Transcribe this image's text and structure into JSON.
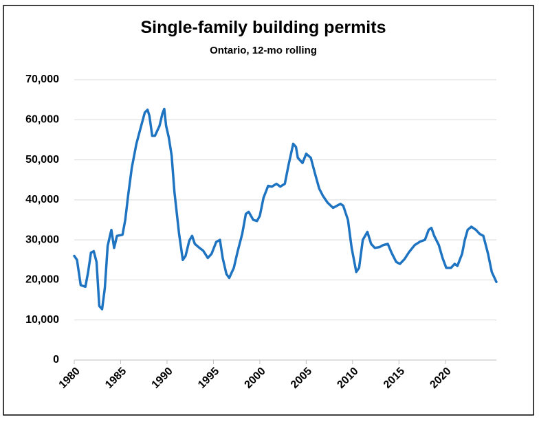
{
  "chart_data": {
    "type": "line",
    "title": "Single-family building permits",
    "subtitle": "Ontario, 12-mo rolling",
    "x": [
      1980.0,
      1980.3,
      1980.7,
      1981.2,
      1981.5,
      1981.8,
      1982.1,
      1982.4,
      1982.5,
      1982.7,
      1983.0,
      1983.3,
      1983.6,
      1983.9,
      1984.0,
      1984.3,
      1984.6,
      1985.2,
      1985.5,
      1985.8,
      1986.2,
      1986.7,
      1987.1,
      1987.6,
      1987.9,
      1988.1,
      1988.4,
      1988.7,
      1989.2,
      1989.5,
      1989.7,
      1989.9,
      1990.2,
      1990.5,
      1990.8,
      1991.3,
      1991.7,
      1992.0,
      1992.4,
      1992.7,
      1993.0,
      1993.5,
      1993.9,
      1994.4,
      1994.8,
      1995.3,
      1995.7,
      1996.0,
      1996.4,
      1996.7,
      1997.2,
      1997.6,
      1998.1,
      1998.5,
      1998.8,
      1999.3,
      1999.7,
      2000.0,
      2000.4,
      2000.9,
      2001.3,
      2001.8,
      2002.2,
      2002.7,
      2003.1,
      2003.6,
      2003.9,
      2004.1,
      2004.6,
      2005.0,
      2005.5,
      2005.9,
      2006.4,
      2006.8,
      2007.3,
      2007.9,
      2008.3,
      2008.7,
      2009.0,
      2009.5,
      2009.9,
      2010.4,
      2010.7,
      2011.1,
      2011.6,
      2012.0,
      2012.4,
      2012.9,
      2013.3,
      2013.8,
      2014.2,
      2014.7,
      2015.1,
      2015.6,
      2016.1,
      2016.7,
      2017.3,
      2017.8,
      2018.2,
      2018.5,
      2018.8,
      2019.3,
      2019.7,
      2020.1,
      2020.6,
      2021.0,
      2021.3,
      2021.8,
      2022.1,
      2022.4,
      2022.8,
      2023.3,
      2023.7,
      2024.1,
      2024.6,
      2025.0,
      2025.5
    ],
    "values": [
      26000,
      25000,
      18700,
      18300,
      22000,
      26800,
      27200,
      24500,
      21000,
      13500,
      12700,
      18000,
      28500,
      31500,
      32500,
      28000,
      31000,
      31300,
      35000,
      41000,
      48000,
      54000,
      57500,
      61800,
      62500,
      61000,
      56000,
      56000,
      58500,
      61500,
      62700,
      58500,
      55500,
      51000,
      42000,
      31500,
      25000,
      26000,
      29800,
      31000,
      29000,
      28000,
      27300,
      25500,
      26500,
      29500,
      30000,
      25500,
      21500,
      20500,
      23000,
      27000,
      31500,
      36500,
      37000,
      35000,
      34700,
      36000,
      40500,
      43500,
      43300,
      44000,
      43300,
      44000,
      48700,
      54000,
      53200,
      50500,
      49200,
      51500,
      50500,
      47000,
      42800,
      41000,
      39300,
      38000,
      38500,
      39000,
      38500,
      35000,
      28000,
      22000,
      23000,
      30000,
      32000,
      29000,
      28000,
      28200,
      28700,
      29000,
      26800,
      24500,
      24000,
      25200,
      27000,
      28700,
      29600,
      30000,
      32500,
      33000,
      31000,
      28700,
      25500,
      23000,
      23000,
      24000,
      23500,
      26500,
      30000,
      32500,
      33300,
      32500,
      31500,
      31000,
      26500,
      22000,
      19500
    ],
    "color": "#1f74c2",
    "xlim": [
      1980,
      2025.5
    ],
    "xticks": [
      1980,
      1985,
      1990,
      1995,
      2000,
      2005,
      2010,
      2015,
      2020
    ],
    "ylim": [
      0,
      70000
    ],
    "yticks": [
      0,
      {
        "value": 10000,
        "label": "10,000"
      },
      {
        "value": 20000,
        "label": "20,000"
      },
      {
        "value": 30000,
        "label": "30,000"
      },
      {
        "value": 40000,
        "label": "40,000"
      },
      {
        "value": 50000,
        "label": "50,000"
      },
      {
        "value": 60000,
        "label": "60,000"
      },
      {
        "value": 70000,
        "label": "70,000"
      }
    ],
    "grid": true
  }
}
